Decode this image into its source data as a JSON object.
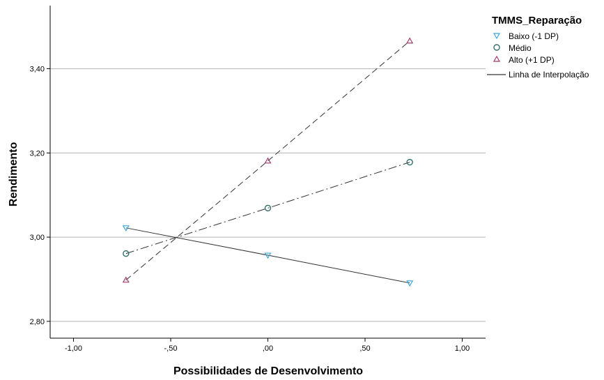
{
  "chart_data": {
    "type": "line",
    "xlabel": "Possibilidades de Desenvolvimento",
    "ylabel": "Rendimento",
    "xlim": [
      -1.12,
      1.12
    ],
    "ylim": [
      2.76,
      3.55
    ],
    "x_ticks": [
      -1.0,
      -0.5,
      0.0,
      0.5,
      1.0
    ],
    "x_tick_labels": [
      "-1,00",
      "-,50",
      ",00",
      ",50",
      "1,00"
    ],
    "y_ticks": [
      2.8,
      3.0,
      3.2,
      3.4
    ],
    "y_tick_labels": [
      "2,80",
      "3,00",
      "3,20",
      "3,40"
    ],
    "grid": "horizontal",
    "legend": {
      "position": "top-right",
      "title": "TMMS_Reparação",
      "interpolation_label": "Linha de Interpolação"
    },
    "series": [
      {
        "name": "Baixo (-1 DP)",
        "marker": "triangle-down",
        "color": "#3ba7d9",
        "line_style": "solid",
        "x": [
          -0.73,
          0.0,
          0.73
        ],
        "y": [
          3.022,
          2.957,
          2.891
        ]
      },
      {
        "name": "Médio",
        "marker": "circle",
        "color": "#2f6f6a",
        "line_style": "dash-dot",
        "x": [
          -0.73,
          0.0,
          0.73
        ],
        "y": [
          2.961,
          3.069,
          3.178
        ]
      },
      {
        "name": "Alto (+1 DP)",
        "marker": "triangle-up",
        "color": "#a23b6a",
        "line_style": "dashed",
        "x": [
          -0.73,
          0.0,
          0.73
        ],
        "y": [
          2.898,
          3.181,
          3.466
        ]
      }
    ]
  }
}
